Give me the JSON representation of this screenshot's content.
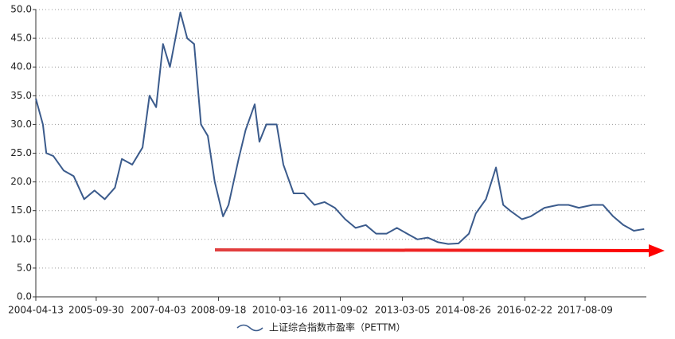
{
  "chart_data": {
    "type": "line",
    "x": [
      "2004-04-13",
      "2004-06-15",
      "2004-07-15",
      "2004-09-15",
      "2004-12-15",
      "2005-03-15",
      "2005-06-15",
      "2005-09-15",
      "2005-12-15",
      "2006-03-15",
      "2006-05-15",
      "2006-08-15",
      "2006-11-15",
      "2007-01-15",
      "2007-03-15",
      "2007-05-15",
      "2007-07-15",
      "2007-10-16",
      "2007-12-15",
      "2008-02-15",
      "2008-04-15",
      "2008-06-15",
      "2008-08-15",
      "2008-10-28",
      "2008-12-15",
      "2009-03-15",
      "2009-05-15",
      "2009-08-04",
      "2009-09-15",
      "2009-11-15",
      "2010-02-15",
      "2010-04-15",
      "2010-07-15",
      "2010-10-15",
      "2011-01-15",
      "2011-04-15",
      "2011-07-15",
      "2011-10-15",
      "2012-01-15",
      "2012-04-15",
      "2012-07-15",
      "2012-10-15",
      "2013-01-15",
      "2013-04-15",
      "2013-07-15",
      "2013-10-15",
      "2014-01-15",
      "2014-04-15",
      "2014-07-15",
      "2014-10-15",
      "2014-12-15",
      "2015-03-15",
      "2015-06-12",
      "2015-08-15",
      "2015-10-15",
      "2016-01-28",
      "2016-04-15",
      "2016-08-15",
      "2016-12-15",
      "2017-03-15",
      "2017-06-15",
      "2017-10-15",
      "2018-01-15",
      "2018-04-15",
      "2018-07-15",
      "2018-10-15",
      "2019-01-15"
    ],
    "series": [
      {
        "name": "上证综合指数市盈率（PETTM）",
        "color": "#3b5b8c",
        "values": [
          34.5,
          30,
          25,
          24.5,
          22,
          21,
          17,
          18.5,
          17,
          19,
          24,
          23,
          26,
          35,
          33,
          44,
          40,
          49.5,
          45,
          44,
          30,
          28,
          20,
          14,
          16,
          24,
          29,
          33.5,
          27,
          30,
          30,
          23,
          18,
          18,
          16,
          16.5,
          15.5,
          13.5,
          12,
          12.5,
          11,
          11,
          12,
          11,
          10,
          10.3,
          9.5,
          9.2,
          9.3,
          11,
          14.5,
          17,
          22.5,
          16,
          15,
          13.5,
          14,
          15.5,
          16,
          16,
          15.5,
          16,
          16,
          14,
          12.5,
          11.5,
          11.8
        ]
      }
    ],
    "xlim": [
      "2004-04-13",
      "2019-02-03"
    ],
    "xticks": [
      "2004-04-13",
      "2005-09-30",
      "2007-04-03",
      "2008-09-18",
      "2010-03-16",
      "2011-09-02",
      "2013-03-05",
      "2014-08-26",
      "2016-02-22",
      "2017-08-09"
    ],
    "ylim": [
      0,
      50
    ],
    "yticks": [
      {
        "value": 0,
        "label": "0.0"
      },
      {
        "value": 5,
        "label": "5.0"
      },
      {
        "value": 10,
        "label": "10.0"
      },
      {
        "value": 15,
        "label": "15.0"
      },
      {
        "value": 20,
        "label": "20.0"
      },
      {
        "value": 25,
        "label": "25.0"
      },
      {
        "value": 30,
        "label": "30.0"
      },
      {
        "value": 35,
        "label": "35.0"
      },
      {
        "value": 40,
        "label": "40.0"
      },
      {
        "value": 45,
        "label": "45.0"
      },
      {
        "value": 50,
        "label": "50.0"
      }
    ],
    "grid": true
  }
}
